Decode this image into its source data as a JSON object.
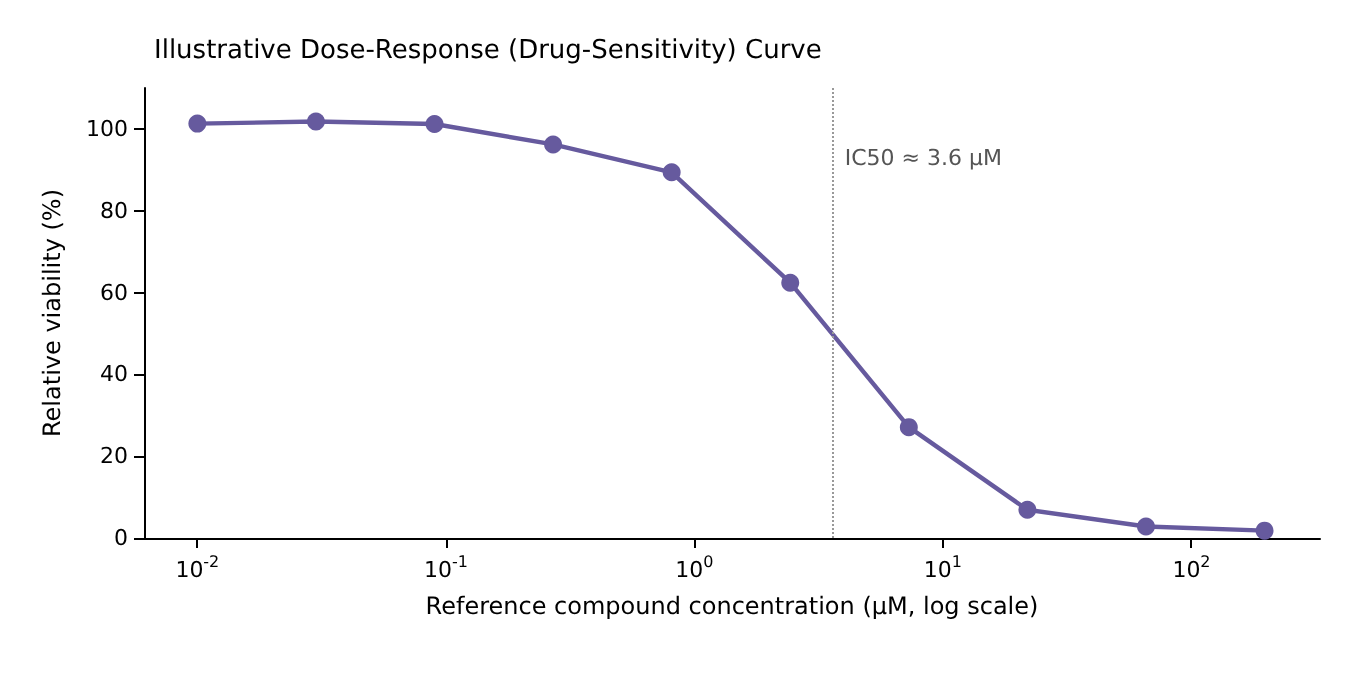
{
  "chart_data": {
    "type": "line",
    "title": "Illustrative Dose-Response (Drug-Sensitivity) Curve",
    "xlabel": "Reference compound concentration (μM, log scale)",
    "ylabel": "Relative viability (%)",
    "x": [
      0.01,
      0.03,
      0.09,
      0.27,
      0.81,
      2.43,
      7.29,
      21.87,
      65.61,
      196.83
    ],
    "series": [
      {
        "color": "#665a9e",
        "values": [
          101.3,
          101.8,
          101.2,
          96.2,
          89.4,
          62.4,
          27.1,
          6.9,
          2.8,
          1.8
        ]
      }
    ],
    "log": "x",
    "xlim": [
      0.0061,
      329
    ],
    "xticks": [
      {
        "value": 0.01,
        "label": "10$^{-2}$"
      },
      {
        "value": 0.1,
        "label": "10$^{-1}$"
      },
      {
        "value": 1,
        "label": "10$^{0}$"
      },
      {
        "value": 10,
        "label": "10$^{1}$"
      },
      {
        "value": 100,
        "label": "10$^{2}$"
      }
    ],
    "ylim": [
      0,
      110
    ],
    "yticks": [
      0,
      20,
      40,
      60,
      80,
      100
    ],
    "ref_lines": [
      {
        "axis": "x",
        "value": 3.6,
        "color": "#999999",
        "line_style": "dotted"
      }
    ],
    "annotations": [
      {
        "text": "IC50 ≈ 3.6 μM",
        "x": 3.6,
        "y": 93
      }
    ],
    "marker": "circle",
    "line_style": "solid"
  }
}
